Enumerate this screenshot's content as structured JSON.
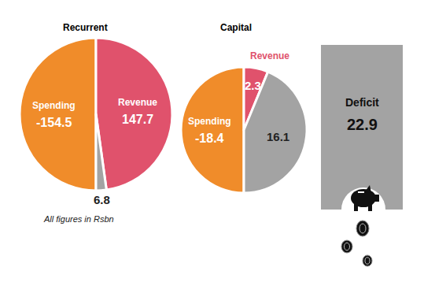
{
  "chart_data": [
    {
      "type": "pie",
      "title": "Recurrent",
      "categories": [
        "Spending",
        "Revenue",
        null
      ],
      "values": [
        -154.5,
        147.7,
        6.8
      ],
      "colors": [
        "#f08c2a",
        "#e0526c",
        "#a3a3a3"
      ],
      "data_labels": true
    },
    {
      "type": "pie",
      "title": "Capital",
      "categories": [
        "Spending",
        "Revenue",
        null
      ],
      "values": [
        -18.4,
        2.3,
        16.1
      ],
      "colors": [
        "#f08c2a",
        "#e0526c",
        "#a3a3a3"
      ],
      "data_labels": true
    }
  ],
  "deficit": {
    "label": "Deficit",
    "value": 22.9
  },
  "note": "All figures in Rsbn"
}
